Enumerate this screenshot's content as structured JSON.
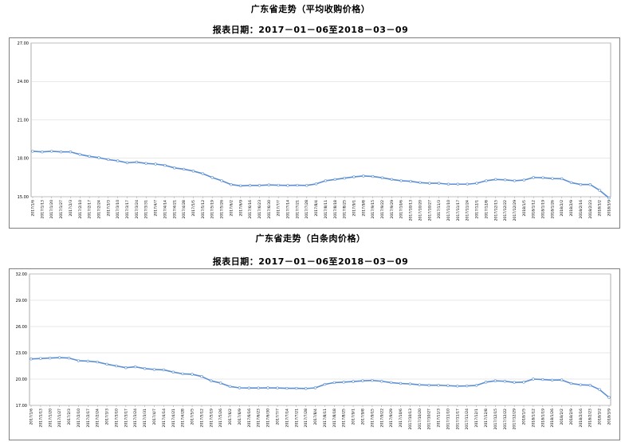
{
  "charts": [
    {
      "title": "广东省走势（平均收购价格）",
      "subtitle": "报表日期：2017－01－06至2018－03－09"
    },
    {
      "title": "广东省走势（白条肉价格）",
      "subtitle": "报表日期：2017－01－06至2018－03－09"
    }
  ],
  "chart_data": [
    {
      "type": "line",
      "title": "广东省走势（平均收购价格）",
      "subtitle": "报表日期：2017－01－06至2018－03－09",
      "ylim": [
        15.0,
        27.0
      ],
      "yticks": [
        "15.00",
        "18.00",
        "21.00",
        "24.00",
        "27.00"
      ],
      "grid": true,
      "line_color": "#5b8fd4",
      "x": [
        "2017/1/6",
        "2017/1/13",
        "2017/1/20",
        "2017/1/27",
        "2017/2/3",
        "2017/2/10",
        "2017/2/17",
        "2017/2/24",
        "2017/3/3",
        "2017/3/10",
        "2017/3/17",
        "2017/3/24",
        "2017/3/31",
        "2017/4/7",
        "2017/4/14",
        "2017/4/21",
        "2017/4/28",
        "2017/5/5",
        "2017/5/12",
        "2017/5/19",
        "2017/5/26",
        "2017/6/2",
        "2017/6/9",
        "2017/6/16",
        "2017/6/23",
        "2017/6/30",
        "2017/7/7",
        "2017/7/14",
        "2017/7/21",
        "2017/7/28",
        "2017/8/4",
        "2017/8/11",
        "2017/8/18",
        "2017/8/25",
        "2017/9/1",
        "2017/9/8",
        "2017/9/15",
        "2017/9/22",
        "2017/9/29",
        "2017/10/6",
        "2017/10/13",
        "2017/10/20",
        "2017/10/27",
        "2017/11/3",
        "2017/11/10",
        "2017/11/17",
        "2017/11/24",
        "2017/12/1",
        "2017/12/8",
        "2017/12/15",
        "2017/12/22",
        "2017/12/29",
        "2018/1/5",
        "2018/1/12",
        "2018/1/19",
        "2018/1/26",
        "2018/2/2",
        "2018/2/9",
        "2018/2/16",
        "2018/2/23",
        "2018/3/2",
        "2018/3/9"
      ],
      "values": [
        18.55,
        18.5,
        18.55,
        18.5,
        18.5,
        18.3,
        18.15,
        18.05,
        17.9,
        17.8,
        17.65,
        17.7,
        17.6,
        17.55,
        17.45,
        17.25,
        17.15,
        17.0,
        16.8,
        16.5,
        16.25,
        15.95,
        15.85,
        15.88,
        15.88,
        15.92,
        15.9,
        15.88,
        15.9,
        15.88,
        16.0,
        16.25,
        16.35,
        16.45,
        16.55,
        16.62,
        16.58,
        16.48,
        16.35,
        16.25,
        16.2,
        16.1,
        16.05,
        16.05,
        15.98,
        15.98,
        15.98,
        16.05,
        16.25,
        16.35,
        16.32,
        16.25,
        16.3,
        16.5,
        16.48,
        16.42,
        16.4,
        16.1,
        15.95,
        15.95,
        15.5,
        14.9
      ]
    },
    {
      "type": "line",
      "title": "广东省走势（白条肉价格）",
      "subtitle": "报表日期：2017－01－06至2018－03－09",
      "ylim": [
        17.0,
        32.0
      ],
      "yticks": [
        "17.00",
        "20.00",
        "23.00",
        "26.00",
        "29.00",
        "32.00"
      ],
      "grid": true,
      "line_color": "#5b8fd4",
      "x": [
        "2017/1/6",
        "2017/1/13",
        "2017/1/20",
        "2017/1/27",
        "2017/2/3",
        "2017/2/10",
        "2017/2/17",
        "2017/2/24",
        "2017/3/3",
        "2017/3/10",
        "2017/3/17",
        "2017/3/24",
        "2017/3/31",
        "2017/4/7",
        "2017/4/14",
        "2017/4/21",
        "2017/4/28",
        "2017/5/5",
        "2017/5/12",
        "2017/5/19",
        "2017/5/26",
        "2017/6/2",
        "2017/6/9",
        "2017/6/16",
        "2017/6/23",
        "2017/6/30",
        "2017/7/7",
        "2017/7/14",
        "2017/7/21",
        "2017/7/28",
        "2017/8/4",
        "2017/8/11",
        "2017/8/18",
        "2017/8/25",
        "2017/9/1",
        "2017/9/8",
        "2017/9/15",
        "2017/9/22",
        "2017/9/29",
        "2017/10/6",
        "2017/10/13",
        "2017/10/20",
        "2017/10/27",
        "2017/11/3",
        "2017/11/10",
        "2017/11/17",
        "2017/11/24",
        "2017/12/1",
        "2017/12/8",
        "2017/12/15",
        "2017/12/22",
        "2017/12/29",
        "2018/1/5",
        "2018/1/12",
        "2018/1/19",
        "2018/1/26",
        "2018/2/2",
        "2018/2/9",
        "2018/2/16",
        "2018/2/23",
        "2018/3/2",
        "2018/3/9"
      ],
      "values": [
        22.3,
        22.35,
        22.4,
        22.45,
        22.4,
        22.1,
        22.05,
        21.95,
        21.7,
        21.5,
        21.3,
        21.4,
        21.2,
        21.1,
        21.05,
        20.8,
        20.6,
        20.55,
        20.3,
        19.8,
        19.55,
        19.15,
        19.0,
        18.98,
        18.98,
        19.0,
        18.98,
        18.95,
        18.95,
        18.92,
        19.0,
        19.4,
        19.6,
        19.65,
        19.72,
        19.8,
        19.85,
        19.75,
        19.6,
        19.5,
        19.45,
        19.35,
        19.3,
        19.3,
        19.25,
        19.2,
        19.22,
        19.28,
        19.65,
        19.8,
        19.75,
        19.62,
        19.65,
        20.0,
        19.95,
        19.88,
        19.9,
        19.5,
        19.35,
        19.3,
        18.8,
        17.9
      ]
    }
  ]
}
